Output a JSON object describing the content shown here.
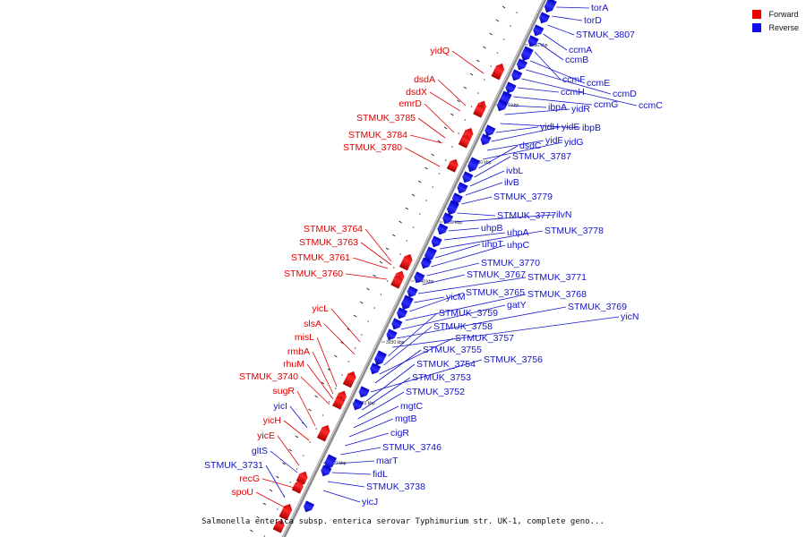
{
  "legend": {
    "forward_label": "Forward",
    "reverse_label": "Reverse",
    "forward_color": "#ee0000",
    "reverse_color": "#1010ee"
  },
  "caption": "Salmonella enterica subsp. enterica serovar Typhimurium str. UK-1, complete geno...",
  "kbp_marks": [
    "3880 kbp",
    "3870 kbp",
    "3960 kbp",
    "3950 kbp",
    "3940 kbp",
    "3930 kbp",
    "3920 kbp",
    "3910 kbp"
  ],
  "forward_labels": [
    "yidQ",
    "dsdA",
    "dsdX",
    "emrD",
    "STMUK_3785",
    "STMUK_3784",
    "STMUK_3780",
    "STMUK_3764",
    "STMUK_3763",
    "STMUK_3761",
    "STMUK_3760",
    "yicL",
    "slsA",
    "misL",
    "rmbA",
    "rhuM",
    "STMUK_3740",
    "sugR",
    "yicH",
    "yicE",
    "recG",
    "spoU"
  ],
  "reverse_labels": [
    "torA",
    "torD",
    "STMUK_3807",
    "ccmA",
    "ccmB",
    "ccmF",
    "ccmE",
    "ccmD",
    "ccmC",
    "ccmH",
    "ccmG",
    "ibpA",
    "yidR",
    "ibpB",
    "yidH",
    "yidE",
    "yidF",
    "yidG",
    "dsdC",
    "STMUK_3787",
    "ivbL",
    "ilvB",
    "STMUK_3779",
    "STMUK_3777",
    "ilvN",
    "uhpB",
    "uhpA",
    "STMUK_3778",
    "uhpT",
    "uhpC",
    "STMUK_3770",
    "STMUK_3767",
    "STMUK_3771",
    "yicM",
    "STMUK_3765",
    "STMUK_3768",
    "gatY",
    "STMUK_3769",
    "yicN",
    "STMUK_3759",
    "STMUK_3758",
    "STMUK_3757",
    "STMUK_3755",
    "STMUK_3756",
    "STMUK_3754",
    "STMUK_3753",
    "STMUK_3752",
    "mgtC",
    "mgtB",
    "cigR",
    "STMUK_3746",
    "marT",
    "fidL",
    "STMUK_3738",
    "yicJ",
    "yicI",
    "gltS",
    "STMUK_3731"
  ]
}
